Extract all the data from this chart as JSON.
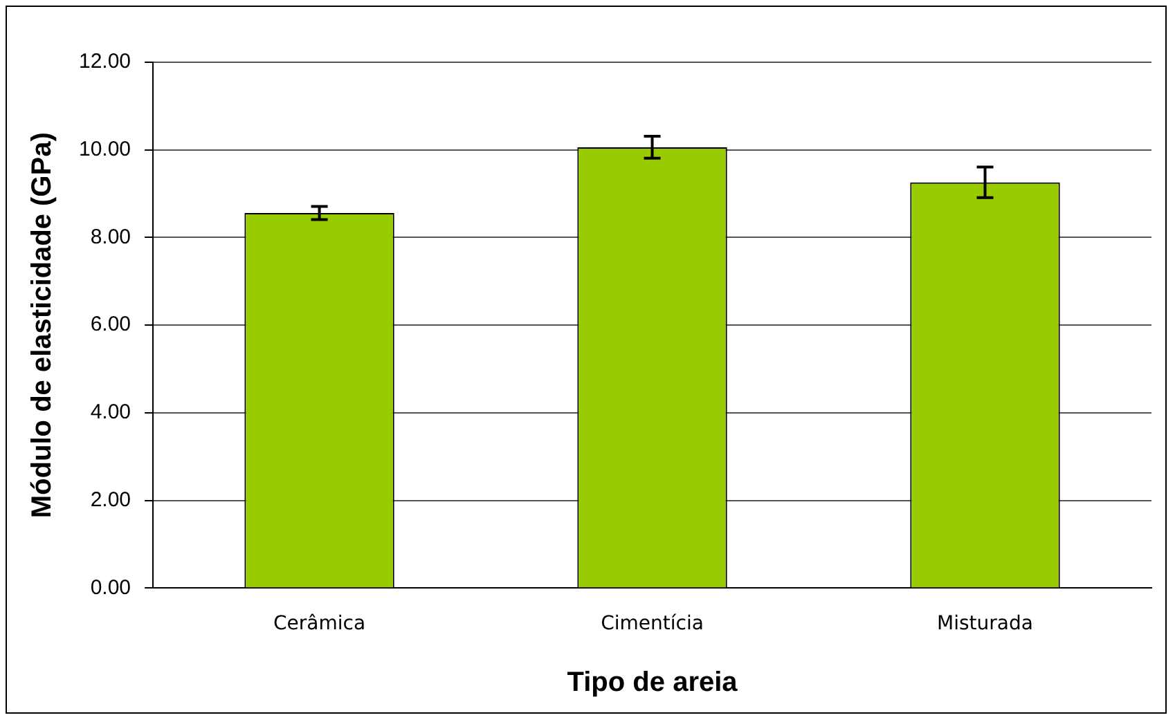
{
  "chart_data": {
    "type": "bar",
    "xlabel": "Tipo de areia",
    "ylabel": "Módulo de elasticidade (GPa)",
    "categories": [
      "Cerâmica",
      "Cimentícia",
      "Misturada"
    ],
    "values": [
      8.56,
      10.06,
      9.26
    ],
    "errors": [
      0.15,
      0.25,
      0.35
    ],
    "color": "#99cc00",
    "ylim": [
      0,
      12
    ],
    "yticks": [
      {
        "value": 0,
        "label": "0.00"
      },
      {
        "value": 2,
        "label": "2.00"
      },
      {
        "value": 4,
        "label": "4.00"
      },
      {
        "value": 6,
        "label": "6.00"
      },
      {
        "value": 8,
        "label": "8.00"
      },
      {
        "value": 10,
        "label": "10.00"
      },
      {
        "value": 12,
        "label": "12.00"
      }
    ],
    "grid": "y",
    "legend": false
  }
}
